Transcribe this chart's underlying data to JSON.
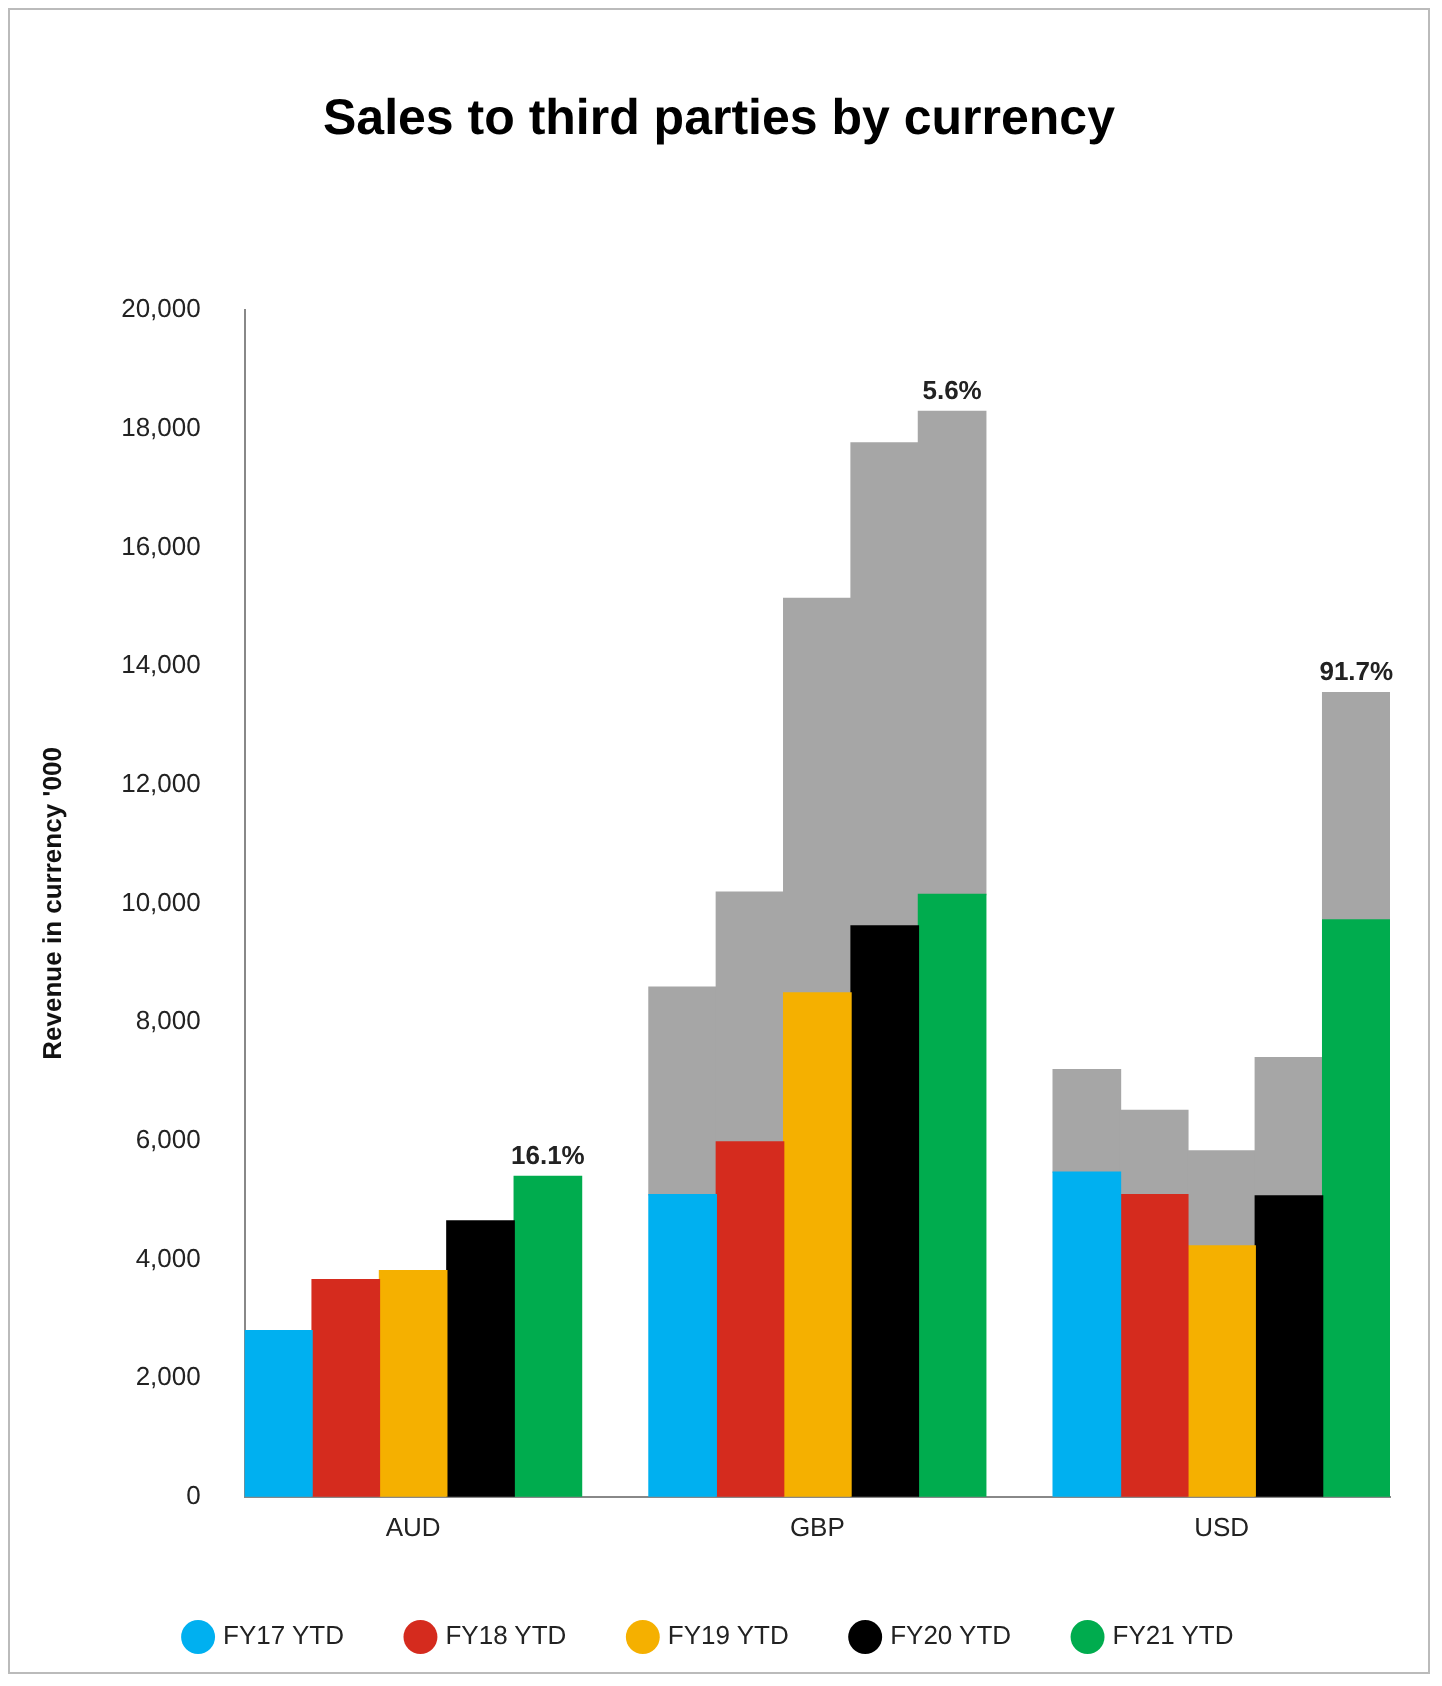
{
  "chart_data": {
    "type": "bar",
    "title": "Sales to third parties by currency",
    "ylabel": "Revenue in currency '000",
    "categories": [
      null,
      null,
      "AUD",
      null,
      null,
      null,
      null,
      null,
      "GBP",
      null,
      null,
      null,
      null,
      null,
      "USD",
      null,
      null
    ],
    "stacked": true,
    "series": [
      {
        "name": "FY17 YTD",
        "color": "#00b0f0",
        "values": [
          2800,
          null,
          null,
          null,
          null,
          null,
          5090,
          null,
          null,
          null,
          null,
          null,
          5470,
          null,
          null,
          null,
          null
        ]
      },
      {
        "name": "FY18 YTD",
        "color": "#d52b1e",
        "values": [
          null,
          3660,
          null,
          null,
          null,
          null,
          null,
          5980,
          null,
          null,
          null,
          null,
          null,
          5090,
          null,
          null,
          null
        ]
      },
      {
        "name": "FY19 YTD",
        "color": "#f5b000",
        "values": [
          null,
          null,
          3810,
          null,
          null,
          null,
          null,
          null,
          8490,
          null,
          null,
          null,
          null,
          null,
          4230,
          null,
          null
        ]
      },
      {
        "name": "FY20 YTD",
        "color": "#000000",
        "values": [
          null,
          null,
          null,
          4650,
          null,
          null,
          null,
          null,
          null,
          9620,
          null,
          null,
          null,
          null,
          null,
          5070,
          null
        ]
      },
      {
        "name": "FY21 YTD",
        "color": "#00ac4e",
        "values": [
          null,
          null,
          null,
          null,
          5400,
          null,
          null,
          null,
          null,
          null,
          10150,
          null,
          null,
          null,
          null,
          null,
          9720
        ]
      },
      {
        "color": "#a6a6a6",
        "values": [
          null,
          null,
          null,
          null,
          null,
          null,
          3500,
          4210,
          6650,
          8140,
          8140,
          null,
          1730,
          1420,
          1600,
          2330,
          3830
        ]
      }
    ],
    "ylim": [
      0,
      20000
    ],
    "yticks": [
      0,
      {
        "value": 2000,
        "label": "2,000"
      },
      {
        "value": 4000,
        "label": "4,000"
      },
      {
        "value": 6000,
        "label": "6,000"
      },
      {
        "value": 8000,
        "label": "8,000"
      },
      {
        "value": 10000,
        "label": "10,000"
      },
      {
        "value": 12000,
        "label": "12,000"
      },
      {
        "value": 14000,
        "label": "14,000"
      },
      {
        "value": 16000,
        "label": "16,000"
      },
      {
        "value": 18000,
        "label": "18,000"
      },
      {
        "value": 20000,
        "label": "20,000"
      }
    ],
    "grid": false,
    "legend": "bottom",
    "annotations": [
      "16.1%",
      "5.6%",
      "91.7%"
    ]
  }
}
